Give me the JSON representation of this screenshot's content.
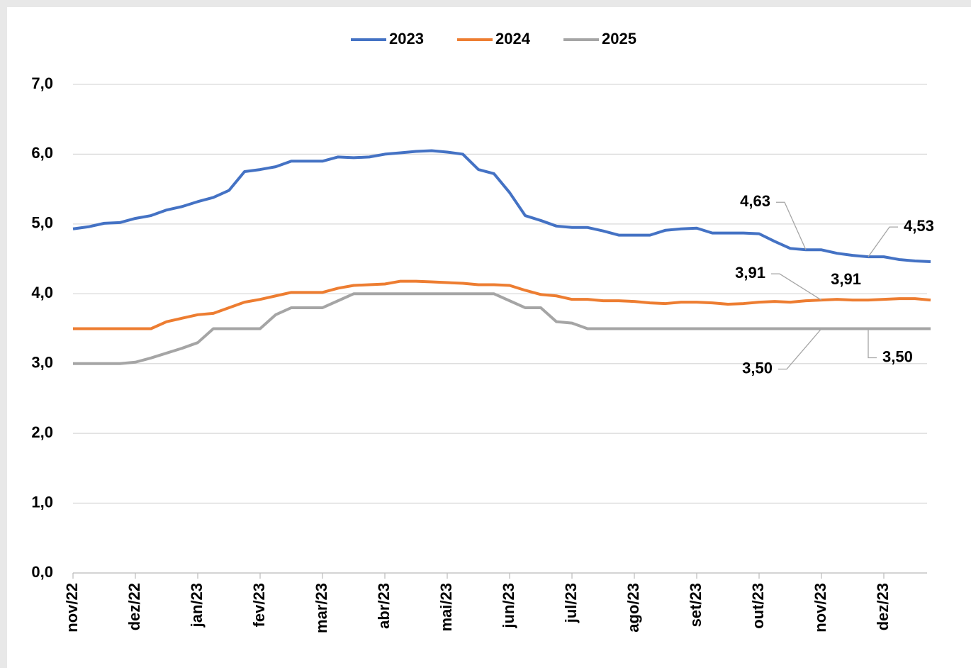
{
  "chart_data": {
    "type": "line",
    "categories": [
      "nov/22",
      null,
      null,
      null,
      "dez/22",
      null,
      null,
      null,
      "jan/23",
      null,
      null,
      null,
      "fev/23",
      null,
      null,
      null,
      "mar/23",
      null,
      null,
      null,
      "abr/23",
      null,
      null,
      null,
      "mai/23",
      null,
      null,
      null,
      "jun/23",
      null,
      null,
      null,
      "jul/23",
      null,
      null,
      null,
      "ago/23",
      null,
      null,
      null,
      "set/23",
      null,
      null,
      null,
      "out/23",
      null,
      null,
      null,
      "nov/23",
      null,
      null,
      null,
      "dez/23",
      null,
      null,
      null
    ],
    "series": [
      {
        "name": "2023",
        "color": "#4472c4",
        "values": [
          4.93,
          4.96,
          5.01,
          5.02,
          5.08,
          5.12,
          5.2,
          5.25,
          5.32,
          5.38,
          5.48,
          5.75,
          5.78,
          5.82,
          5.9,
          5.9,
          5.9,
          5.96,
          5.95,
          5.96,
          6.0,
          6.02,
          6.04,
          6.05,
          6.03,
          6.0,
          5.78,
          5.72,
          5.45,
          5.12,
          5.05,
          4.97,
          4.95,
          4.95,
          4.9,
          4.84,
          4.84,
          4.84,
          4.91,
          4.93,
          4.94,
          4.87,
          4.87,
          4.87,
          4.86,
          4.75,
          4.65,
          4.63,
          4.63,
          4.58,
          4.55,
          4.53,
          4.53,
          4.49,
          4.47,
          4.46
        ],
        "value_labels": [
          null,
          null,
          null,
          null,
          null,
          null,
          null,
          null,
          null,
          null,
          null,
          null,
          null,
          null,
          null,
          null,
          null,
          null,
          null,
          null,
          null,
          null,
          null,
          null,
          null,
          null,
          null,
          null,
          null,
          null,
          null,
          null,
          null,
          null,
          null,
          null,
          null,
          null,
          null,
          null,
          null,
          null,
          null,
          null,
          null,
          null,
          null,
          "4,63",
          null,
          null,
          null,
          "4,53",
          null,
          null,
          null,
          null
        ]
      },
      {
        "name": "2024",
        "color": "#ed7d31",
        "values": [
          3.5,
          3.5,
          3.5,
          3.5,
          3.5,
          3.5,
          3.6,
          3.65,
          3.7,
          3.72,
          3.8,
          3.88,
          3.92,
          3.97,
          4.02,
          4.02,
          4.02,
          4.08,
          4.12,
          4.13,
          4.14,
          4.18,
          4.18,
          4.17,
          4.16,
          4.15,
          4.13,
          4.13,
          4.12,
          4.05,
          3.99,
          3.97,
          3.92,
          3.92,
          3.9,
          3.9,
          3.89,
          3.87,
          3.86,
          3.88,
          3.88,
          3.87,
          3.85,
          3.86,
          3.88,
          3.89,
          3.88,
          3.9,
          3.91,
          3.92,
          3.91,
          3.91,
          3.92,
          3.93,
          3.93,
          3.91
        ],
        "value_labels": [
          null,
          null,
          null,
          null,
          null,
          null,
          null,
          null,
          null,
          null,
          null,
          null,
          null,
          null,
          null,
          null,
          null,
          null,
          null,
          null,
          null,
          null,
          null,
          null,
          null,
          null,
          null,
          null,
          null,
          null,
          null,
          null,
          null,
          null,
          null,
          null,
          null,
          null,
          null,
          null,
          null,
          null,
          null,
          null,
          null,
          null,
          null,
          null,
          "3,91",
          null,
          null,
          "3,91",
          null,
          null,
          null,
          null
        ]
      },
      {
        "name": "2025",
        "color": "#a5a5a5",
        "values": [
          3.0,
          3.0,
          3.0,
          3.0,
          3.02,
          3.08,
          3.15,
          3.22,
          3.3,
          3.5,
          3.5,
          3.5,
          3.5,
          3.7,
          3.8,
          3.8,
          3.8,
          3.9,
          4.0,
          4.0,
          4.0,
          4.0,
          4.0,
          4.0,
          4.0,
          4.0,
          4.0,
          4.0,
          3.9,
          3.8,
          3.8,
          3.6,
          3.58,
          3.5,
          3.5,
          3.5,
          3.5,
          3.5,
          3.5,
          3.5,
          3.5,
          3.5,
          3.5,
          3.5,
          3.5,
          3.5,
          3.5,
          3.5,
          3.5,
          3.5,
          3.5,
          3.5,
          3.5,
          3.5,
          3.5,
          3.5
        ],
        "value_labels": [
          null,
          null,
          null,
          null,
          null,
          null,
          null,
          null,
          null,
          null,
          null,
          null,
          null,
          null,
          null,
          null,
          null,
          null,
          null,
          null,
          null,
          null,
          null,
          null,
          null,
          null,
          null,
          null,
          null,
          null,
          null,
          null,
          null,
          null,
          null,
          null,
          null,
          null,
          null,
          null,
          null,
          null,
          null,
          null,
          null,
          null,
          null,
          null,
          "3,50",
          null,
          null,
          "3,50",
          null,
          null,
          null,
          null
        ]
      }
    ],
    "ylim": [
      0,
      7
    ],
    "yticks": [
      {
        "value": 0,
        "label": "0,0"
      },
      {
        "value": 1,
        "label": "1,0"
      },
      {
        "value": 2,
        "label": "2,0"
      },
      {
        "value": 3,
        "label": "3,0"
      },
      {
        "value": 4,
        "label": "4,0"
      },
      {
        "value": 5,
        "label": "5,0"
      },
      {
        "value": 6,
        "label": "6,0"
      },
      {
        "value": 7,
        "label": "7,0"
      }
    ],
    "grid": true,
    "legend": "top"
  }
}
